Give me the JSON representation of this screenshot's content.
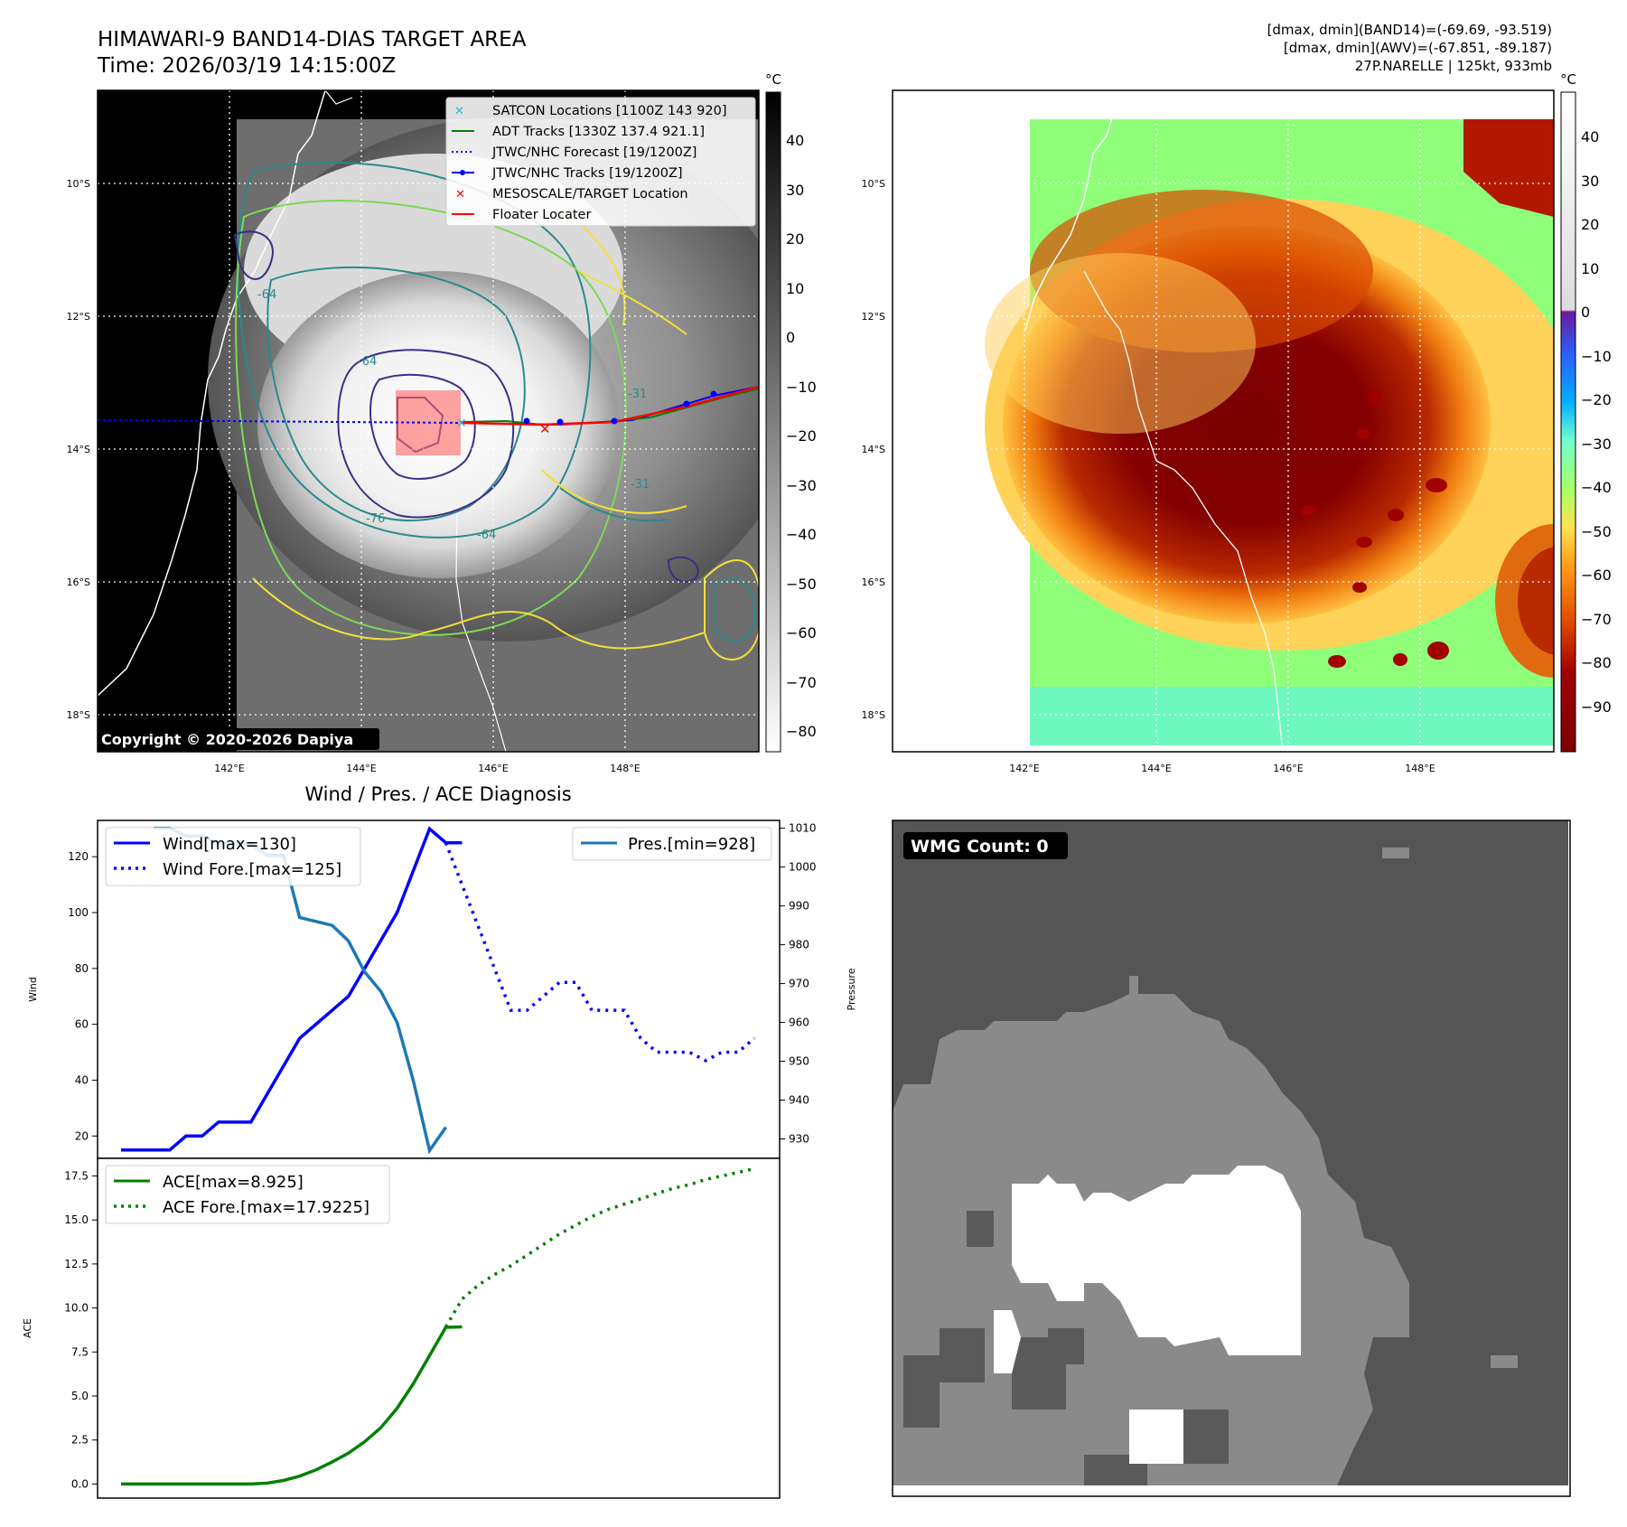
{
  "header": {
    "title_line1": "HIMAWARI-9 BAND14-DIAS TARGET AREA",
    "title_line2": "Time: 2026/03/19 14:15:00Z",
    "info_line1": "[dmax, dmin](BAND14)=(-69.69, -93.519)",
    "info_line2": "[dmax, dmin](AWV)=(-67.851, -89.187)",
    "info_line3": "27P.NARELLE | 125kt, 933mb"
  },
  "map_common": {
    "lat_labels": [
      "10°S",
      "12°S",
      "14°S",
      "16°S",
      "18°S"
    ],
    "lon_labels": [
      "142°E",
      "144°E",
      "146°E",
      "148°E"
    ],
    "unit_label": "°C"
  },
  "ir_panel": {
    "copyright": "Copyright © 2020-2026 Dapiya",
    "colorbar_ticks": [
      "40",
      "30",
      "20",
      "10",
      "0",
      "−10",
      "−20",
      "−30",
      "−40",
      "−50",
      "−60",
      "−70",
      "−80"
    ],
    "contour_labels": [
      "-64",
      "-64",
      "-76",
      "-64",
      "-31",
      "-31"
    ],
    "legend": [
      {
        "label": "SATCON Locations [1100Z 143 920]",
        "color": "#17becf"
      },
      {
        "label": "ADT Tracks [1330Z 137.4 921.1]",
        "color": "#008000"
      },
      {
        "label": "JTWC/NHC Forecast [19/1200Z]",
        "color": "#0000ff"
      },
      {
        "label": "JTWC/NHC Tracks [19/1200Z]",
        "color": "#0000ff"
      },
      {
        "label": "MESOSCALE/TARGET Location",
        "color": "#ff0000"
      },
      {
        "label": "Floater Locater",
        "color": "#ff0000"
      }
    ]
  },
  "wv_panel": {
    "colorbar_ticks": [
      "40",
      "30",
      "20",
      "10",
      "0",
      "−10",
      "−20",
      "−30",
      "−40",
      "−50",
      "−60",
      "−70",
      "−80",
      "−90"
    ]
  },
  "wmg_panel": {
    "label": "WMG Count: 0"
  },
  "diagnosis": {
    "title": "Wind / Pres. / ACE Diagnosis"
  },
  "chart_data": [
    {
      "type": "line",
      "title": "Wind / Pres. / ACE Diagnosis",
      "xlabel": "",
      "ylabel": "Wind",
      "ylabel_right": "Pressure",
      "ylim": [
        12,
        133
      ],
      "ylim_right": [
        925,
        1012
      ],
      "yticks": [
        20,
        40,
        60,
        80,
        100,
        120
      ],
      "yticks_right": [
        930,
        940,
        950,
        960,
        970,
        980,
        990,
        1000,
        1010
      ],
      "x_range": [
        0,
        40
      ],
      "series": [
        {
          "name": "Wind[max=130]",
          "axis": "left",
          "style": "solid",
          "color": "#0000ff",
          "x": [
            1,
            2,
            3,
            4,
            5,
            6,
            7,
            8,
            9,
            10,
            11,
            12,
            13,
            14,
            15,
            16,
            17,
            18,
            19,
            20,
            21,
            22
          ],
          "values": [
            15,
            15,
            15,
            15,
            20,
            20,
            25,
            25,
            25,
            35,
            45,
            55,
            60,
            65,
            70,
            80,
            90,
            100,
            115,
            130,
            125,
            125
          ]
        },
        {
          "name": "Wind Fore.[max=125]",
          "axis": "left",
          "style": "dotted",
          "color": "#0000ff",
          "x": [
            21,
            22,
            23,
            24,
            25,
            26,
            27,
            28,
            29,
            30,
            31,
            32,
            33,
            34,
            35,
            36,
            37,
            38,
            39,
            40
          ],
          "values": [
            125,
            110,
            95,
            80,
            65,
            65,
            70,
            75,
            75,
            65,
            65,
            65,
            55,
            50,
            50,
            50,
            47,
            50,
            50,
            55
          ]
        },
        {
          "name": "Pres.[min=928]",
          "axis": "right",
          "style": "solid",
          "color": "#1f77b4",
          "x": [
            3,
            4,
            5,
            6,
            7,
            8,
            9,
            10,
            11,
            12,
            13,
            14,
            15,
            16,
            17,
            18,
            19,
            20,
            21
          ],
          "values": [
            1010,
            1010,
            1008,
            1008,
            1006,
            1006,
            1006,
            1003,
            1003,
            987,
            986,
            985,
            981,
            973,
            968,
            960,
            945,
            927,
            933
          ]
        }
      ]
    },
    {
      "type": "line",
      "ylabel": "ACE",
      "ylim": [
        -0.8,
        18.5
      ],
      "yticks": [
        0.0,
        2.5,
        5.0,
        7.5,
        10.0,
        12.5,
        15.0,
        17.5
      ],
      "x_range": [
        0,
        40
      ],
      "series": [
        {
          "name": "ACE[max=8.925]",
          "style": "solid",
          "color": "#008000",
          "x": [
            1,
            2,
            3,
            4,
            5,
            6,
            7,
            8,
            9,
            10,
            11,
            12,
            13,
            14,
            15,
            16,
            17,
            18,
            19,
            20,
            21,
            22
          ],
          "values": [
            0,
            0,
            0,
            0,
            0,
            0,
            0,
            0,
            0,
            0.05,
            0.2,
            0.45,
            0.8,
            1.25,
            1.75,
            2.4,
            3.2,
            4.3,
            5.7,
            7.3,
            8.9,
            8.925
          ]
        },
        {
          "name": "ACE Fore.[max=17.9225]",
          "style": "dotted",
          "color": "#008000",
          "x": [
            21,
            22,
            23,
            24,
            25,
            26,
            27,
            28,
            29,
            30,
            31,
            32,
            33,
            34,
            35,
            36,
            37,
            38,
            39,
            40
          ],
          "values": [
            8.925,
            10.5,
            11.3,
            11.9,
            12.4,
            13.0,
            13.6,
            14.2,
            14.7,
            15.2,
            15.6,
            15.9,
            16.2,
            16.5,
            16.8,
            17.0,
            17.3,
            17.5,
            17.7,
            17.92
          ]
        }
      ]
    }
  ]
}
